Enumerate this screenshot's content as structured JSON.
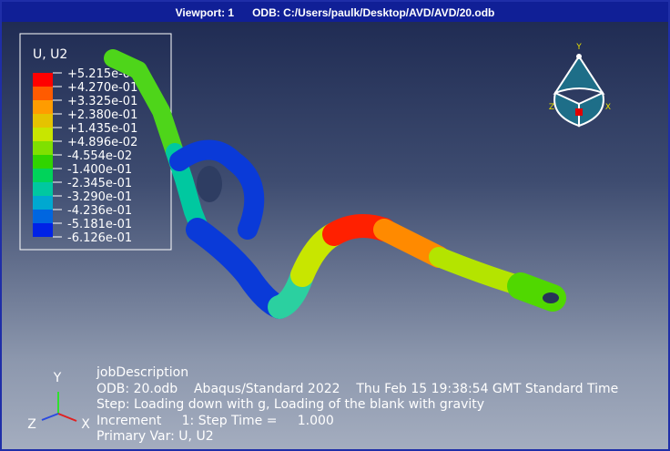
{
  "titlebar": {
    "viewport": "Viewport: 1",
    "odb": "ODB: C:/Users/paulk/Desktop/AVD/AVD/20.odb"
  },
  "legend": {
    "title": "U, U2",
    "labels": [
      "+5.215e-01",
      "+4.270e-01",
      "+3.325e-01",
      "+2.380e-01",
      "+1.435e-01",
      "+4.896e-02",
      "-4.554e-02",
      "-1.400e-01",
      "-2.345e-01",
      "-3.290e-01",
      "-4.236e-01",
      "-5.181e-01",
      "-6.126e-01"
    ],
    "colors": [
      "#ff0000",
      "#ff5b00",
      "#ff9c00",
      "#e5c300",
      "#c8e600",
      "#7fe000",
      "#30d400",
      "#00d35a",
      "#00c8a0",
      "#00a8d0",
      "#0066e0",
      "#0022e6"
    ]
  },
  "view_triad": {
    "y": "Y",
    "z": "Z",
    "x": "X"
  },
  "axis_triad": {
    "y": "Y",
    "z": "Z",
    "x": "X"
  },
  "info": {
    "lines": [
      "jobDescription",
      "ODB: 20.odb    Abaqus/Standard 2022    Thu Feb 15 19:38:54 GMT Standard Time",
      "Step: Loading down with g, Loading of the blank with gravity",
      "Increment     1: Step Time =     1.000",
      "Primary Var: U, U2"
    ]
  }
}
